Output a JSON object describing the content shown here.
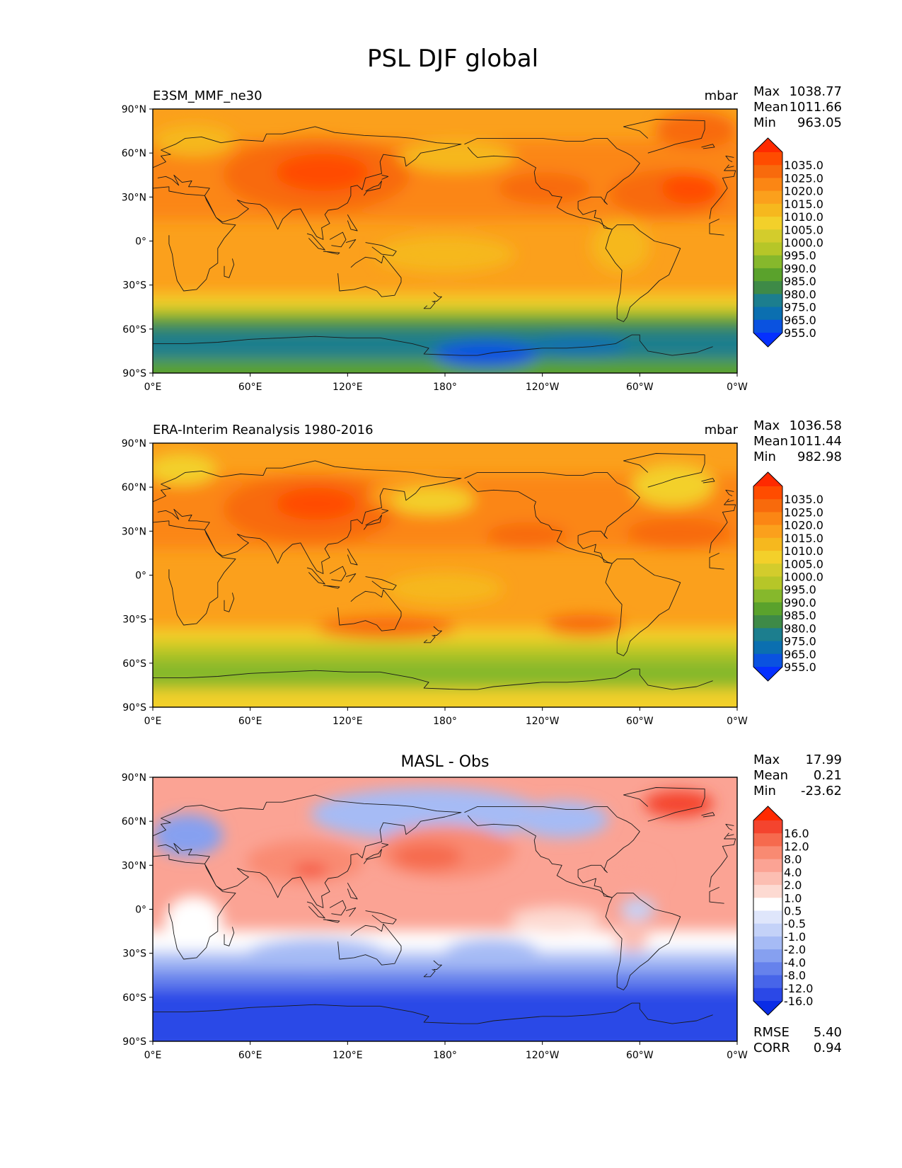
{
  "figure": {
    "title": "PSL DJF global"
  },
  "axes": {
    "lat_ticks": [
      "90°N",
      "60°N",
      "30°N",
      "0°",
      "30°S",
      "60°S",
      "90°S"
    ],
    "lon_ticks": [
      "0°E",
      "60°E",
      "120°E",
      "180°",
      "120°W",
      "60°W",
      "0°W"
    ]
  },
  "panels": [
    {
      "left_title": "E3SM_MMF_ne30",
      "right_title": "mbar",
      "center_title": "",
      "stats": {
        "max_label": "Max",
        "max": "1038.77",
        "mean_label": "Mean",
        "mean": "1011.66",
        "min_label": "Min",
        "min": "963.05"
      },
      "colorbar": {
        "levels": [
          "1035.0",
          "1025.0",
          "1020.0",
          "1015.0",
          "1010.0",
          "1005.0",
          "1000.0",
          "995.0",
          "990.0",
          "985.0",
          "980.0",
          "975.0",
          "965.0",
          "955.0"
        ],
        "colors": [
          "#ff2a00",
          "#ff4c00",
          "#f86a0c",
          "#fb8614",
          "#fba01c",
          "#f6b81e",
          "#f3d02a",
          "#d3cc2c",
          "#b6c628",
          "#86b82c",
          "#5aa22c",
          "#3e8a47",
          "#1c7e8e",
          "#0b6fb0",
          "#0a52e0",
          "#0530ff"
        ]
      },
      "pattern": "model"
    },
    {
      "left_title": "ERA-Interim Reanalysis 1980-2016",
      "right_title": "mbar",
      "center_title": "",
      "stats": {
        "max_label": "Max",
        "max": "1036.58",
        "mean_label": "Mean",
        "mean": "1011.44",
        "min_label": "Min",
        "min": "982.98"
      },
      "colorbar": {
        "levels": [
          "1035.0",
          "1025.0",
          "1020.0",
          "1015.0",
          "1010.0",
          "1005.0",
          "1000.0",
          "995.0",
          "990.0",
          "985.0",
          "980.0",
          "975.0",
          "965.0",
          "955.0"
        ],
        "colors": [
          "#ff2a00",
          "#ff4c00",
          "#f86a0c",
          "#fb8614",
          "#fba01c",
          "#f6b81e",
          "#f3d02a",
          "#d3cc2c",
          "#b6c628",
          "#86b82c",
          "#5aa22c",
          "#3e8a47",
          "#1c7e8e",
          "#0b6fb0",
          "#0a52e0",
          "#0530ff"
        ]
      },
      "pattern": "obs"
    },
    {
      "left_title": "",
      "right_title": "",
      "center_title": "MASL - Obs",
      "stats": {
        "max_label": "Max",
        "max": "17.99",
        "mean_label": "Mean",
        "mean": "0.21",
        "min_label": "Min",
        "min": "-23.62"
      },
      "colorbar": {
        "levels": [
          "16.0",
          "12.0",
          "8.0",
          "4.0",
          "2.0",
          "1.0",
          "0.5",
          "-0.5",
          "-1.0",
          "-2.0",
          "-4.0",
          "-8.0",
          "-12.0",
          "-16.0"
        ],
        "colors": [
          "#ff2a00",
          "#f4442e",
          "#f66a4e",
          "#f98a72",
          "#fba394",
          "#fcbeb2",
          "#fddad2",
          "#ffffff",
          "#dfe6fb",
          "#c4d2f8",
          "#a6bbf5",
          "#86a0f0",
          "#6682ec",
          "#4765e9",
          "#2b48e7",
          "#0a2ce6"
        ]
      },
      "pattern": "diff",
      "metrics": {
        "rmse_label": "RMSE",
        "rmse": "5.40",
        "corr_label": "CORR",
        "corr": "0.94"
      }
    }
  ]
}
